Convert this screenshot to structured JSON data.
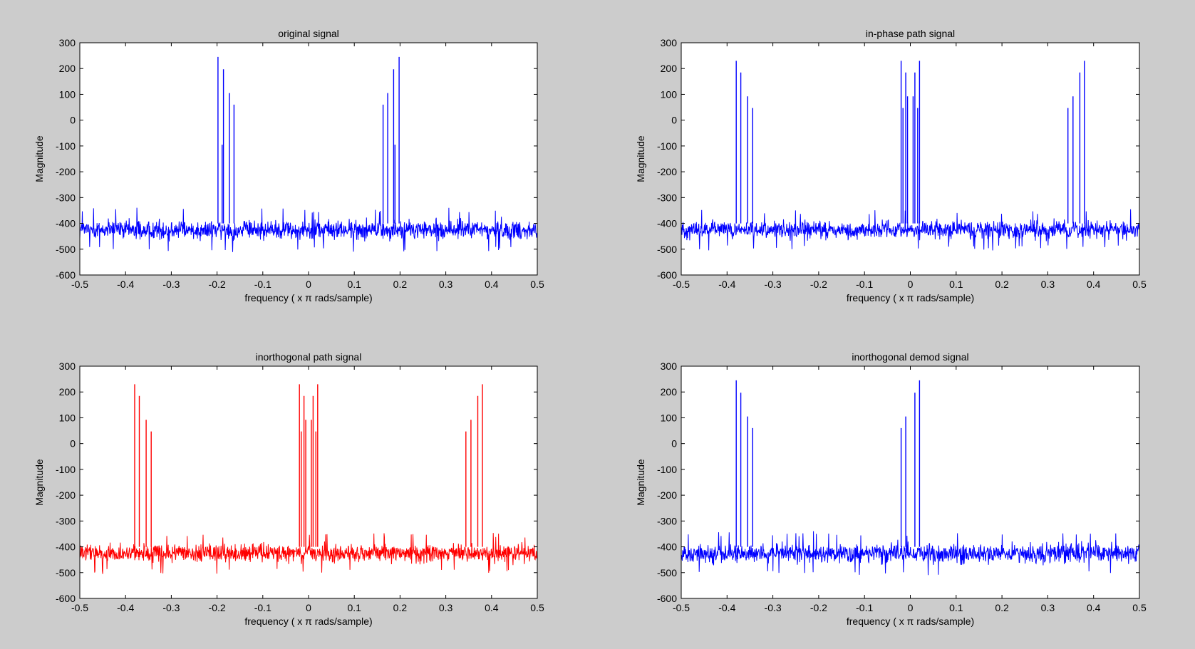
{
  "figure": {
    "background": "#cccccc",
    "axes_background": "#ffffff"
  },
  "chart_data": [
    {
      "type": "line",
      "title": "original signal",
      "xlabel": "frequency ( x  π rads/sample)",
      "ylabel": "Magnitude",
      "xlim": [
        -0.5,
        0.5
      ],
      "ylim": [
        -600,
        300
      ],
      "xticks": [
        -0.5,
        -0.4,
        -0.3,
        -0.2,
        -0.1,
        0,
        0.1,
        0.2,
        0.3,
        0.4,
        0.5
      ],
      "xtick_labels": [
        "-0.5",
        "-0.4",
        "-0.3",
        "-0.2",
        "-0.1",
        "0",
        "0.1",
        "0.2",
        "0.3",
        "0.4",
        "0.5"
      ],
      "yticks": [
        300,
        200,
        100,
        0,
        -100,
        -200,
        -300,
        -400,
        -500,
        -600
      ],
      "ytick_labels": [
        "300",
        "200",
        "100",
        "0",
        "-100",
        "-200",
        "-300",
        "-400",
        "-500",
        "-600"
      ],
      "grid": false,
      "color": "#0000ff",
      "noise_floor": {
        "mean": -425,
        "spread": 55
      },
      "peaks": [
        {
          "x": -0.198,
          "y": 245
        },
        {
          "x": -0.189,
          "y": -95
        },
        {
          "x": -0.186,
          "y": 197
        },
        {
          "x": -0.173,
          "y": 105
        },
        {
          "x": -0.163,
          "y": 60
        },
        {
          "x": 0.163,
          "y": 60
        },
        {
          "x": 0.173,
          "y": 105
        },
        {
          "x": 0.186,
          "y": 197
        },
        {
          "x": 0.189,
          "y": -95
        },
        {
          "x": 0.198,
          "y": 245
        }
      ]
    },
    {
      "type": "line",
      "title": "in-phase path signal",
      "xlabel": "frequency ( x  π rads/sample)",
      "ylabel": "Magnitude",
      "xlim": [
        -0.5,
        0.5
      ],
      "ylim": [
        -600,
        300
      ],
      "xticks": [
        -0.5,
        -0.4,
        -0.3,
        -0.2,
        -0.1,
        0,
        0.1,
        0.2,
        0.3,
        0.4,
        0.5
      ],
      "xtick_labels": [
        "-0.5",
        "-0.4",
        "-0.3",
        "-0.2",
        "-0.1",
        "0",
        "0.1",
        "0.2",
        "0.3",
        "0.4",
        "0.5"
      ],
      "yticks": [
        300,
        200,
        100,
        0,
        -100,
        -200,
        -300,
        -400,
        -500,
        -600
      ],
      "ytick_labels": [
        "300",
        "200",
        "100",
        "0",
        "-100",
        "-200",
        "-300",
        "-400",
        "-500",
        "-600"
      ],
      "grid": false,
      "color": "#0000ff",
      "noise_floor": {
        "mean": -425,
        "spread": 50
      },
      "peaks": [
        {
          "x": -0.38,
          "y": 230
        },
        {
          "x": -0.37,
          "y": 185
        },
        {
          "x": -0.355,
          "y": 92
        },
        {
          "x": -0.344,
          "y": 47
        },
        {
          "x": -0.02,
          "y": 230
        },
        {
          "x": -0.016,
          "y": 47
        },
        {
          "x": -0.01,
          "y": 185
        },
        {
          "x": -0.006,
          "y": 92
        },
        {
          "x": 0.006,
          "y": 92
        },
        {
          "x": 0.01,
          "y": 185
        },
        {
          "x": 0.016,
          "y": 47
        },
        {
          "x": 0.02,
          "y": 230
        },
        {
          "x": 0.344,
          "y": 47
        },
        {
          "x": 0.355,
          "y": 92
        },
        {
          "x": 0.37,
          "y": 185
        },
        {
          "x": 0.38,
          "y": 230
        }
      ]
    },
    {
      "type": "line",
      "title": "inorthogonal path signal",
      "xlabel": "frequency ( x  π rads/sample)",
      "ylabel": "Magnitude",
      "xlim": [
        -0.5,
        0.5
      ],
      "ylim": [
        -600,
        300
      ],
      "xticks": [
        -0.5,
        -0.4,
        -0.3,
        -0.2,
        -0.1,
        0,
        0.1,
        0.2,
        0.3,
        0.4,
        0.5
      ],
      "xtick_labels": [
        "-0.5",
        "-0.4",
        "-0.3",
        "-0.2",
        "-0.1",
        "0",
        "0.1",
        "0.2",
        "0.3",
        "0.4",
        "0.5"
      ],
      "yticks": [
        300,
        200,
        100,
        0,
        -100,
        -200,
        -300,
        -400,
        -500,
        -600
      ],
      "ytick_labels": [
        "300",
        "200",
        "100",
        "0",
        "-100",
        "-200",
        "-300",
        "-400",
        "-500",
        "-600"
      ],
      "grid": false,
      "color": "#ff0000",
      "noise_floor": {
        "mean": -425,
        "spread": 50
      },
      "peaks": [
        {
          "x": -0.38,
          "y": 230
        },
        {
          "x": -0.37,
          "y": 185
        },
        {
          "x": -0.355,
          "y": 92
        },
        {
          "x": -0.344,
          "y": 47
        },
        {
          "x": -0.02,
          "y": 230
        },
        {
          "x": -0.016,
          "y": 47
        },
        {
          "x": -0.01,
          "y": 185
        },
        {
          "x": -0.006,
          "y": 92
        },
        {
          "x": 0.006,
          "y": 92
        },
        {
          "x": 0.01,
          "y": 185
        },
        {
          "x": 0.016,
          "y": 47
        },
        {
          "x": 0.02,
          "y": 230
        },
        {
          "x": 0.344,
          "y": 47
        },
        {
          "x": 0.355,
          "y": 92
        },
        {
          "x": 0.37,
          "y": 185
        },
        {
          "x": 0.38,
          "y": 230
        }
      ]
    },
    {
      "type": "line",
      "title": "inorthogonal demod signal",
      "xlabel": "frequency ( x  π rads/sample)",
      "ylabel": "Magnitude",
      "xlim": [
        -0.5,
        0.5
      ],
      "ylim": [
        -600,
        300
      ],
      "xticks": [
        -0.5,
        -0.4,
        -0.3,
        -0.2,
        -0.1,
        0,
        0.1,
        0.2,
        0.3,
        0.4,
        0.5
      ],
      "xtick_labels": [
        "-0.5",
        "-0.4",
        "-0.3",
        "-0.2",
        "-0.1",
        "0",
        "0.1",
        "0.2",
        "0.3",
        "0.4",
        "0.5"
      ],
      "yticks": [
        300,
        200,
        100,
        0,
        -100,
        -200,
        -300,
        -400,
        -500,
        -600
      ],
      "ytick_labels": [
        "300",
        "200",
        "100",
        "0",
        "-100",
        "-200",
        "-300",
        "-400",
        "-500",
        "-600"
      ],
      "grid": false,
      "color": "#0000ff",
      "noise_floor": {
        "mean": -425,
        "spread": 55
      },
      "peaks": [
        {
          "x": -0.38,
          "y": 245
        },
        {
          "x": -0.37,
          "y": 197
        },
        {
          "x": -0.355,
          "y": 105
        },
        {
          "x": -0.344,
          "y": 60
        },
        {
          "x": -0.02,
          "y": 60
        },
        {
          "x": -0.01,
          "y": 105
        },
        {
          "x": 0.01,
          "y": 197
        },
        {
          "x": 0.02,
          "y": 245
        }
      ]
    }
  ]
}
